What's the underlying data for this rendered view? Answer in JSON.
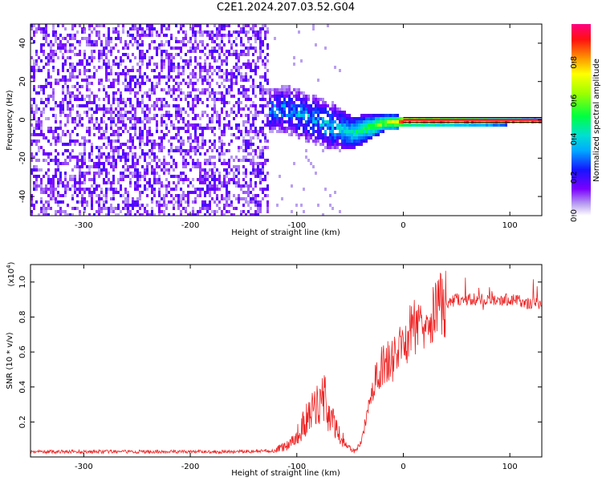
{
  "title": "C2E1.2024.207.03.52.G04",
  "chart_data": [
    {
      "type": "heatmap",
      "xlabel": "Height of straight line (km)",
      "ylabel": "Frequency (Hz)",
      "xlim": [
        -350,
        130
      ],
      "ylim": [
        -50,
        50
      ],
      "xticks": [
        -300,
        -200,
        -100,
        0,
        100
      ],
      "yticks": [
        -40,
        -20,
        0,
        20,
        40
      ],
      "colorbar": {
        "label": "Normalized spectral amplitude",
        "range": [
          0.0,
          1.0
        ],
        "ticks": [
          0.0,
          0.2,
          0.4,
          0.6,
          0.8
        ]
      },
      "description_points": [
        {
          "x": -250,
          "freq_center": 0,
          "spread": 50,
          "amplitude": 0.15
        },
        {
          "x": -160,
          "freq_center": 5,
          "spread": 6,
          "amplitude": 0.3
        },
        {
          "x": -110,
          "freq_center": 6,
          "spread": 8,
          "amplitude": 0.35
        },
        {
          "x": -70,
          "freq_center": -2,
          "spread": 8,
          "amplitude": 0.4
        },
        {
          "x": -50,
          "freq_center": -6,
          "spread": 6,
          "amplitude": 0.45
        },
        {
          "x": -20,
          "freq_center": -1,
          "spread": 3,
          "amplitude": 0.7
        },
        {
          "x": 0,
          "freq_center": 0,
          "spread": 2,
          "amplitude": 0.9
        },
        {
          "x": 130,
          "freq_center": 0,
          "spread": 1,
          "amplitude": 0.95
        }
      ]
    },
    {
      "type": "line",
      "xlabel": "Height of straight line (km)",
      "ylabel": "SNR (10 * v/v)",
      "yscale_label": "(x10",
      "yscale_exp": "4",
      "yscale_close": ")",
      "xlim": [
        -350,
        130
      ],
      "ylim": [
        0,
        1.1
      ],
      "xticks": [
        -300,
        -200,
        -100,
        0,
        100
      ],
      "yticks": [
        0.2,
        0.4,
        0.6,
        0.8,
        1.0
      ],
      "series": [
        {
          "color": "#ee2222",
          "x": [
            -350,
            -300,
            -250,
            -200,
            -150,
            -120,
            -110,
            -100,
            -90,
            -80,
            -75,
            -70,
            -60,
            -50,
            -45,
            -40,
            -35,
            -30,
            -25,
            -20,
            -15,
            -10,
            -5,
            0,
            10,
            20,
            30,
            40,
            50,
            60,
            70,
            80,
            90,
            100,
            110,
            120,
            130
          ],
          "y": [
            0.03,
            0.03,
            0.03,
            0.03,
            0.03,
            0.035,
            0.05,
            0.1,
            0.18,
            0.25,
            0.3,
            0.2,
            0.1,
            0.05,
            0.03,
            0.08,
            0.2,
            0.38,
            0.45,
            0.52,
            0.55,
            0.55,
            0.6,
            0.65,
            0.75,
            0.8,
            0.85,
            0.88,
            0.9,
            0.9,
            0.9,
            0.9,
            0.9,
            0.9,
            0.89,
            0.88,
            0.88
          ]
        }
      ]
    }
  ]
}
